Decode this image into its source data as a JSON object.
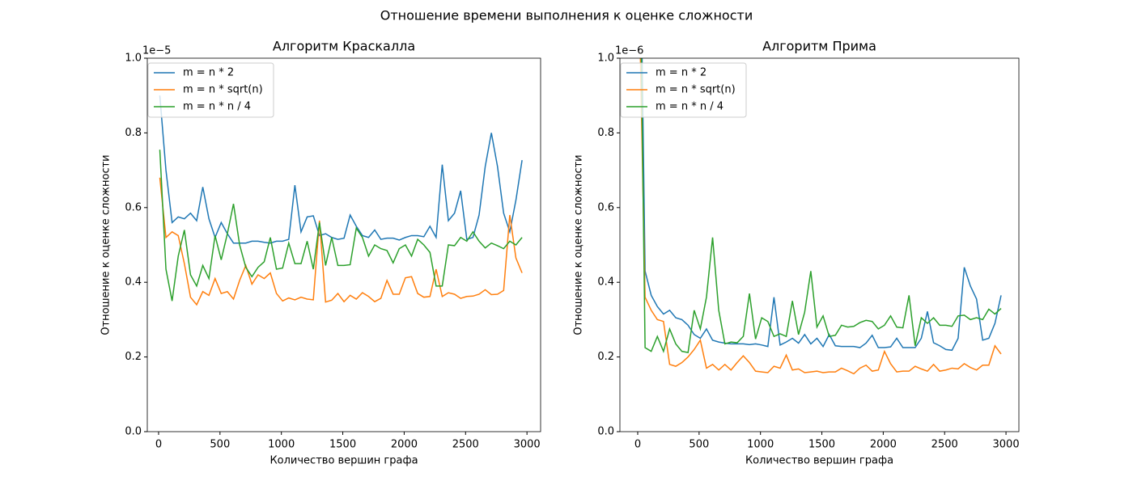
{
  "title": "Отношение времени выполнения к оценке сложности",
  "chart_data": [
    {
      "type": "line",
      "title": "Алгоритм Краскалла",
      "x_label": "Количество вершин графа",
      "y_label": "Отношение к оценке сложности",
      "offset_text": "1e−5",
      "legend": "upper left",
      "xlim": [
        -92,
        3111
      ],
      "ylim": [
        0,
        1
      ],
      "xticks": [
        0,
        500,
        1000,
        1500,
        2000,
        2500,
        3000
      ],
      "yticks": [
        {
          "value": 0,
          "label": "0.0"
        },
        0.2,
        0.4,
        0.6,
        0.8,
        {
          "value": 1,
          "label": "1.0"
        }
      ],
      "x": [
        10,
        60,
        110,
        160,
        210,
        260,
        310,
        360,
        410,
        460,
        510,
        560,
        610,
        660,
        710,
        760,
        810,
        860,
        910,
        960,
        1010,
        1060,
        1110,
        1160,
        1210,
        1260,
        1310,
        1360,
        1410,
        1460,
        1510,
        1560,
        1610,
        1660,
        1710,
        1760,
        1810,
        1860,
        1910,
        1960,
        2010,
        2060,
        2110,
        2160,
        2210,
        2260,
        2310,
        2360,
        2410,
        2460,
        2510,
        2560,
        2610,
        2660,
        2710,
        2760,
        2810,
        2860,
        2910,
        2960
      ],
      "series": [
        {
          "name": "m = n * 2",
          "color": "#1f77b4",
          "values": [
            0.9,
            0.7,
            0.56,
            0.575,
            0.57,
            0.585,
            0.565,
            0.655,
            0.57,
            0.52,
            0.56,
            0.53,
            0.505,
            0.505,
            0.505,
            0.51,
            0.51,
            0.507,
            0.505,
            0.51,
            0.51,
            0.515,
            0.66,
            0.535,
            0.575,
            0.578,
            0.525,
            0.53,
            0.52,
            0.515,
            0.518,
            0.58,
            0.55,
            0.525,
            0.52,
            0.54,
            0.515,
            0.518,
            0.518,
            0.513,
            0.52,
            0.525,
            0.525,
            0.522,
            0.55,
            0.52,
            0.715,
            0.565,
            0.585,
            0.645,
            0.515,
            0.52,
            0.58,
            0.71,
            0.8,
            0.71,
            0.585,
            0.535,
            0.62,
            0.727
          ]
        },
        {
          "name": "m = n * sqrt(n)",
          "color": "#ff7f0e",
          "values": [
            0.68,
            0.52,
            0.535,
            0.525,
            0.45,
            0.36,
            0.34,
            0.375,
            0.365,
            0.41,
            0.37,
            0.375,
            0.355,
            0.405,
            0.445,
            0.395,
            0.42,
            0.41,
            0.425,
            0.37,
            0.35,
            0.358,
            0.353,
            0.36,
            0.355,
            0.353,
            0.565,
            0.347,
            0.352,
            0.37,
            0.348,
            0.365,
            0.355,
            0.372,
            0.362,
            0.348,
            0.357,
            0.405,
            0.368,
            0.368,
            0.412,
            0.415,
            0.37,
            0.36,
            0.362,
            0.435,
            0.362,
            0.372,
            0.368,
            0.357,
            0.362,
            0.363,
            0.368,
            0.38,
            0.367,
            0.368,
            0.378,
            0.58,
            0.465,
            0.425
          ]
        },
        {
          "name": "m = n * n / 4",
          "color": "#2ca02c",
          "values": [
            0.755,
            0.435,
            0.35,
            0.47,
            0.54,
            0.42,
            0.39,
            0.445,
            0.41,
            0.525,
            0.46,
            0.53,
            0.61,
            0.5,
            0.44,
            0.415,
            0.44,
            0.455,
            0.52,
            0.435,
            0.438,
            0.505,
            0.45,
            0.45,
            0.51,
            0.435,
            0.56,
            0.445,
            0.52,
            0.445,
            0.445,
            0.447,
            0.545,
            0.52,
            0.47,
            0.5,
            0.49,
            0.485,
            0.452,
            0.49,
            0.5,
            0.47,
            0.515,
            0.5,
            0.48,
            0.39,
            0.39,
            0.5,
            0.498,
            0.52,
            0.51,
            0.535,
            0.51,
            0.492,
            0.505,
            0.498,
            0.49,
            0.51,
            0.5,
            0.52
          ]
        }
      ]
    },
    {
      "type": "line",
      "title": "Алгоритм Прима",
      "x_label": "Количество вершин графа",
      "y_label": "Отношение к оценке сложности",
      "offset_text": "1e−6",
      "legend": "upper left",
      "xlim": [
        -145,
        3105
      ],
      "ylim": [
        0,
        1
      ],
      "xticks": [
        0,
        500,
        1000,
        1500,
        2000,
        2500,
        3000
      ],
      "yticks": [
        {
          "value": 0,
          "label": "0.0"
        },
        0.2,
        0.4,
        0.6,
        0.8,
        {
          "value": 1,
          "label": "1.0"
        }
      ],
      "x": [
        10,
        60,
        110,
        160,
        210,
        260,
        310,
        360,
        410,
        460,
        510,
        560,
        610,
        660,
        710,
        760,
        810,
        860,
        910,
        960,
        1010,
        1060,
        1110,
        1160,
        1210,
        1260,
        1310,
        1360,
        1410,
        1460,
        1510,
        1560,
        1610,
        1660,
        1710,
        1760,
        1810,
        1860,
        1910,
        1960,
        2010,
        2060,
        2110,
        2160,
        2210,
        2260,
        2310,
        2360,
        2410,
        2460,
        2510,
        2560,
        2610,
        2660,
        2710,
        2760,
        2810,
        2860,
        2910,
        2960
      ],
      "series": [
        {
          "name": "m = n * 2",
          "color": "#1f77b4",
          "values": [
            1.6,
            0.43,
            0.365,
            0.335,
            0.315,
            0.325,
            0.305,
            0.3,
            0.285,
            0.26,
            0.25,
            0.275,
            0.245,
            0.24,
            0.237,
            0.235,
            0.235,
            0.235,
            0.233,
            0.235,
            0.232,
            0.228,
            0.36,
            0.232,
            0.24,
            0.25,
            0.237,
            0.26,
            0.235,
            0.25,
            0.228,
            0.26,
            0.23,
            0.228,
            0.228,
            0.228,
            0.225,
            0.237,
            0.258,
            0.225,
            0.225,
            0.227,
            0.25,
            0.225,
            0.225,
            0.225,
            0.25,
            0.322,
            0.238,
            0.23,
            0.22,
            0.218,
            0.25,
            0.44,
            0.39,
            0.355,
            0.245,
            0.25,
            0.29,
            0.365
          ]
        },
        {
          "name": "m = n * sqrt(n)",
          "color": "#ff7f0e",
          "values": [
            1.2,
            0.36,
            0.325,
            0.3,
            0.295,
            0.18,
            0.175,
            0.185,
            0.2,
            0.22,
            0.245,
            0.17,
            0.18,
            0.165,
            0.18,
            0.165,
            0.185,
            0.203,
            0.185,
            0.162,
            0.16,
            0.158,
            0.175,
            0.17,
            0.205,
            0.165,
            0.168,
            0.158,
            0.16,
            0.162,
            0.158,
            0.16,
            0.16,
            0.17,
            0.163,
            0.155,
            0.17,
            0.178,
            0.162,
            0.165,
            0.215,
            0.182,
            0.16,
            0.162,
            0.162,
            0.175,
            0.168,
            0.162,
            0.18,
            0.162,
            0.165,
            0.17,
            0.168,
            0.182,
            0.172,
            0.165,
            0.178,
            0.178,
            0.23,
            0.208
          ]
        },
        {
          "name": "m = n * n / 4",
          "color": "#2ca02c",
          "values": [
            1.5,
            0.225,
            0.215,
            0.255,
            0.215,
            0.275,
            0.235,
            0.215,
            0.212,
            0.325,
            0.275,
            0.36,
            0.52,
            0.325,
            0.235,
            0.24,
            0.238,
            0.255,
            0.37,
            0.248,
            0.305,
            0.295,
            0.255,
            0.262,
            0.255,
            0.35,
            0.26,
            0.32,
            0.43,
            0.28,
            0.31,
            0.255,
            0.258,
            0.285,
            0.28,
            0.282,
            0.292,
            0.298,
            0.295,
            0.275,
            0.285,
            0.31,
            0.28,
            0.278,
            0.365,
            0.23,
            0.305,
            0.29,
            0.305,
            0.285,
            0.285,
            0.282,
            0.31,
            0.312,
            0.3,
            0.305,
            0.3,
            0.328,
            0.315,
            0.33
          ]
        }
      ]
    }
  ]
}
